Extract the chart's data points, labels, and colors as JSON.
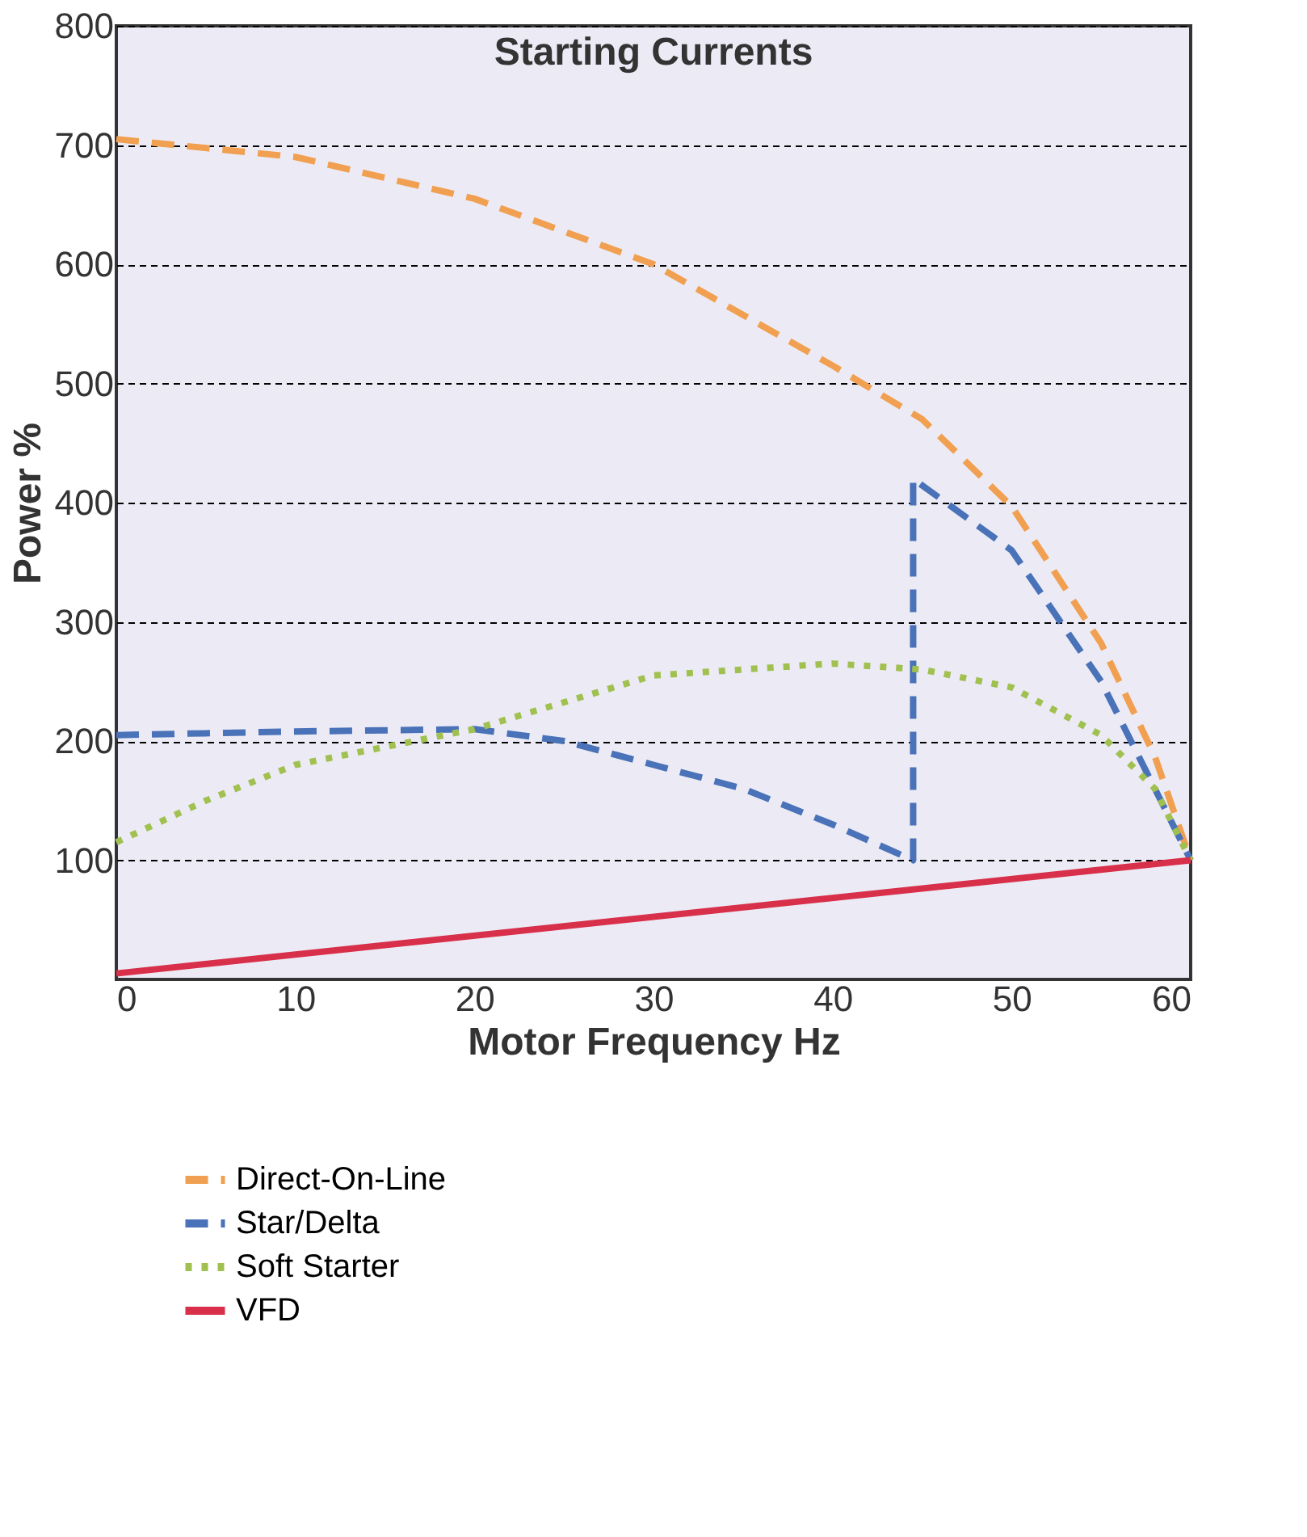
{
  "chart_data": {
    "type": "line",
    "title": "Starting Currents",
    "xlabel": "Motor Frequency Hz",
    "ylabel": "Power %",
    "xlim": [
      0,
      60
    ],
    "xticks": [
      0,
      10,
      20,
      30,
      40,
      50,
      60
    ],
    "ylim": [
      0,
      800
    ],
    "yticks": [
      100,
      200,
      300,
      400,
      500,
      600,
      700,
      800
    ],
    "grid": "y",
    "legend": "bottom",
    "marker": "none",
    "series": [
      {
        "name": "Direct-On-Line",
        "color": "#f0a050",
        "line_style": "dashed",
        "x": [
          0,
          10,
          20,
          30,
          40,
          45,
          50,
          55,
          58,
          60
        ],
        "values": [
          705,
          690,
          655,
          600,
          515,
          470,
          397,
          282,
          187,
          100
        ]
      },
      {
        "name": "Star/Delta",
        "color": "#4a72b8",
        "line_style": "dashed",
        "x": [
          0,
          10,
          20,
          25,
          30,
          35,
          40,
          44.5,
          44.5,
          50,
          55,
          58,
          60
        ],
        "values": [
          205,
          208,
          210,
          200,
          180,
          160,
          130,
          100,
          420,
          360,
          250,
          160,
          100
        ]
      },
      {
        "name": "Soft Starter",
        "color": "#a0c050",
        "line_style": "dotted",
        "x": [
          0,
          5,
          10,
          20,
          30,
          40,
          45,
          50,
          55,
          58,
          60
        ],
        "values": [
          115,
          150,
          180,
          210,
          255,
          265,
          260,
          245,
          205,
          160,
          100
        ]
      },
      {
        "name": "VFD",
        "color": "#d8304a",
        "line_style": "solid",
        "x": [
          0,
          60
        ],
        "values": [
          5,
          100
        ]
      }
    ]
  }
}
